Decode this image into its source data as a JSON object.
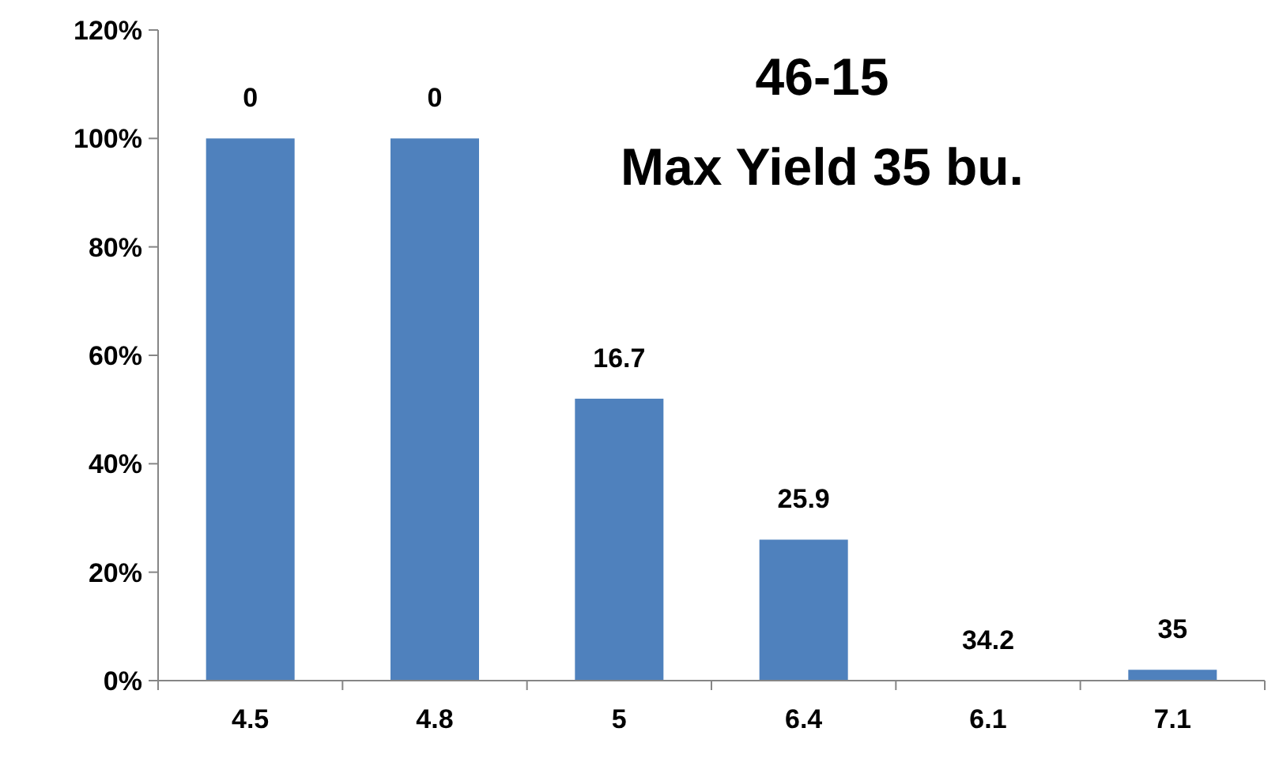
{
  "chart_data": {
    "type": "bar",
    "title": "46-15",
    "subtitle": "Max Yield 35 bu.",
    "categories": [
      "4.5",
      "4.8",
      "5",
      "6.4",
      "6.1",
      "7.1"
    ],
    "values": [
      100,
      100,
      52,
      26,
      0,
      2
    ],
    "annotations": [
      {
        "text": "0",
        "x": "4.5",
        "y": 100
      },
      {
        "text": "0",
        "x": "4.8",
        "y": 100
      },
      {
        "text": "16.7",
        "x": "5",
        "y": 52
      },
      {
        "text": "25.9",
        "x": "6.4",
        "y": 26
      },
      {
        "text": "34.2",
        "x": "6.1",
        "y": 0
      },
      {
        "text": "35",
        "x": "7.1",
        "y": 2
      }
    ],
    "color": "#4f81bd",
    "ylim": [
      0,
      120
    ],
    "yticks": [
      {
        "value": 0,
        "label": "0%"
      },
      {
        "value": 20,
        "label": "20%"
      },
      {
        "value": 40,
        "label": "40%"
      },
      {
        "value": 60,
        "label": "60%"
      },
      {
        "value": 80,
        "label": "80%"
      },
      {
        "value": 100,
        "label": "100%"
      },
      {
        "value": 120,
        "label": "120%"
      }
    ],
    "grid": false
  }
}
